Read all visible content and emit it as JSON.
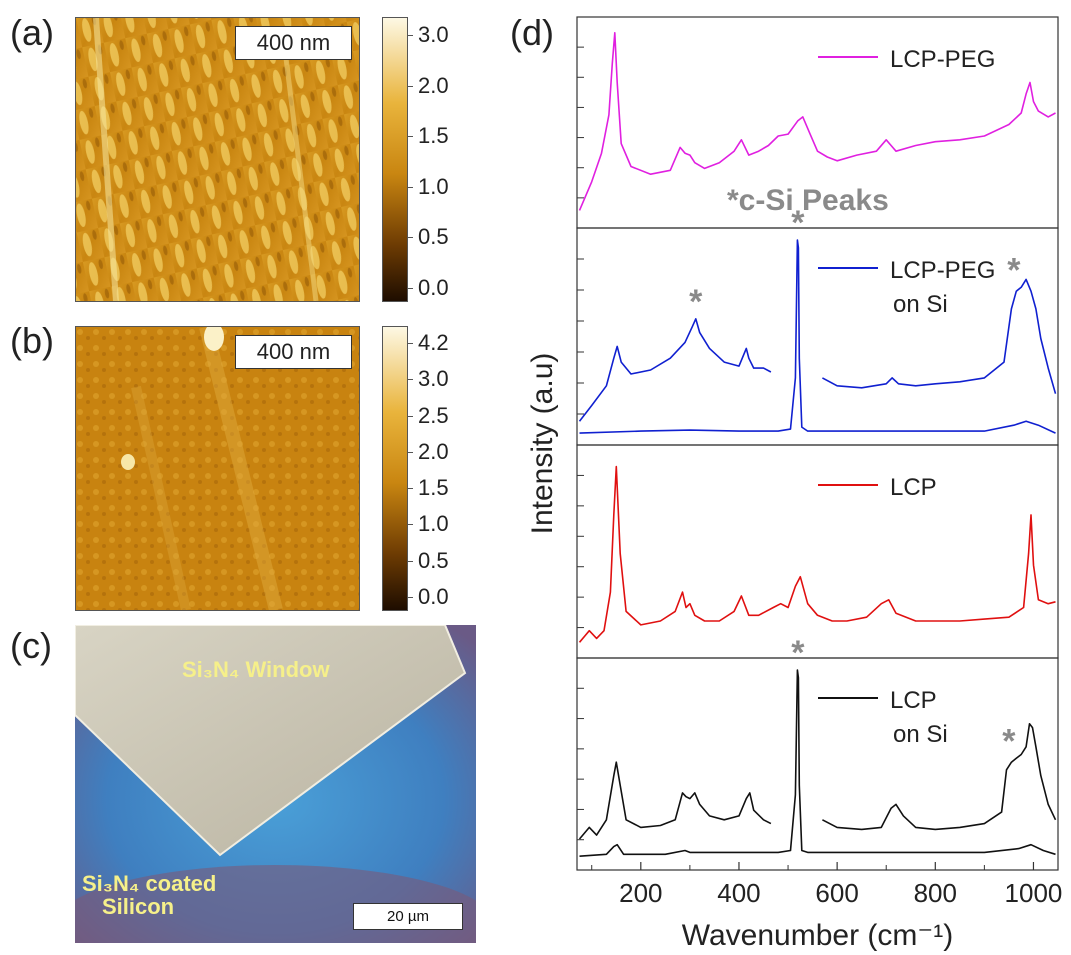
{
  "panels": {
    "a": {
      "label": "(a)",
      "scalebar": "400 nm",
      "colorbar_ticks": [
        "3.0",
        "2.0",
        "1.5",
        "1.0",
        "0.5",
        "0.0"
      ]
    },
    "b": {
      "label": "(b)",
      "scalebar": "400 nm",
      "colorbar_ticks": [
        "4.2",
        "3.0",
        "2.5",
        "2.0",
        "1.5",
        "1.0",
        "0.5",
        "0.0"
      ]
    },
    "c": {
      "label": "(c)",
      "window_text": "Si₃N₄ Window",
      "coated_line1": "Si₃N₄ coated",
      "coated_line2": "Silicon",
      "scalebar": "20 µm"
    },
    "d": {
      "label": "(d)"
    }
  },
  "colors": {
    "afm_dark": "#1e0d00",
    "afm_mid": "#c98611",
    "afm_light": "#f7e8a0",
    "lcp_peg": "#e020e0",
    "lcp_peg_si": "#1020d0",
    "lcp": "#e01010",
    "lcp_si": "#111111",
    "peak_marker": "#8a8a8a",
    "micro_text": "#f6f08a"
  },
  "chart_data": {
    "type": "line",
    "xlabel": "Wavenumber (cm⁻¹)",
    "ylabel": "Intensity (a.u)",
    "xlim": [
      70,
      1050
    ],
    "xticks": [
      200,
      400,
      600,
      800,
      1000
    ],
    "annotation": "*c-Si Peaks",
    "peak_marker": "*",
    "subplots": [
      {
        "legend": [
          "LCP-PEG"
        ],
        "color": "#e020e0",
        "series": [
          {
            "x": [
              75,
              100,
              120,
              135,
              142,
              147,
              152,
              160,
              180,
              220,
              260,
              280,
              290,
              300,
              310,
              330,
              360,
              390,
              405,
              420,
              440,
              460,
              480,
              500,
              520,
              530,
              545,
              560,
              580,
              600,
              640,
              680,
              700,
              720,
              760,
              800,
              850,
              900,
              950,
              975,
              985,
              993,
              1000,
              1010,
              1030,
              1045
            ],
            "y": [
              0.05,
              0.2,
              0.35,
              0.55,
              0.82,
              0.98,
              0.72,
              0.4,
              0.28,
              0.24,
              0.26,
              0.38,
              0.35,
              0.34,
              0.3,
              0.27,
              0.3,
              0.36,
              0.42,
              0.34,
              0.36,
              0.39,
              0.44,
              0.45,
              0.52,
              0.54,
              0.45,
              0.36,
              0.33,
              0.31,
              0.34,
              0.36,
              0.42,
              0.36,
              0.39,
              0.41,
              0.42,
              0.44,
              0.5,
              0.56,
              0.66,
              0.72,
              0.62,
              0.57,
              0.54,
              0.56
            ]
          }
        ]
      },
      {
        "legend": [
          "LCP-PEG",
          "on Si"
        ],
        "color": "#1020d0",
        "series": [
          {
            "x": [
              75,
              100,
              130,
              145,
              152,
              160,
              180,
              220,
              260,
              290,
              305,
              312,
              320,
              340,
              370,
              400,
              415,
              420,
              430,
              450,
              465
            ],
            "y": [
              0.08,
              0.16,
              0.26,
              0.4,
              0.46,
              0.38,
              0.32,
              0.34,
              0.4,
              0.48,
              0.56,
              0.6,
              0.53,
              0.45,
              0.38,
              0.36,
              0.45,
              0.4,
              0.35,
              0.35,
              0.33
            ]
          },
          {
            "x": [
              570,
              600,
              650,
              700,
              712,
              725,
              760,
              800,
              850,
              900,
              940,
              955,
              965,
              975,
              985,
              995,
              1005,
              1015,
              1030,
              1045
            ],
            "y": [
              0.3,
              0.26,
              0.25,
              0.27,
              0.3,
              0.27,
              0.26,
              0.27,
              0.28,
              0.3,
              0.38,
              0.65,
              0.74,
              0.76,
              0.8,
              0.74,
              0.65,
              0.5,
              0.35,
              0.22
            ]
          },
          {
            "x": [
              75,
              200,
              300,
              400,
              480,
              505,
              515,
              519,
              521,
              523,
              528,
              540,
              600,
              700,
              800,
              900,
              960,
              985,
              1010,
              1045
            ],
            "y": [
              0.02,
              0.03,
              0.035,
              0.03,
              0.03,
              0.04,
              0.3,
              1.0,
              0.96,
              0.4,
              0.05,
              0.03,
              0.03,
              0.03,
              0.03,
              0.03,
              0.06,
              0.08,
              0.06,
              0.02
            ]
          }
        ]
      },
      {
        "legend": [
          "LCP"
        ],
        "color": "#e01010",
        "series": [
          {
            "x": [
              75,
              95,
              110,
              125,
              138,
              145,
              150,
              158,
              170,
              200,
              240,
              270,
              285,
              292,
              300,
              310,
              330,
              360,
              390,
              405,
              420,
              440,
              470,
              485,
              500,
              515,
              525,
              540,
              560,
              590,
              620,
              660,
              690,
              705,
              720,
              760,
              800,
              850,
              900,
              950,
              980,
              990,
              995,
              1000,
              1010,
              1030,
              1045
            ],
            "y": [
              0.04,
              0.1,
              0.06,
              0.1,
              0.3,
              0.7,
              0.95,
              0.5,
              0.2,
              0.13,
              0.15,
              0.2,
              0.3,
              0.22,
              0.24,
              0.18,
              0.15,
              0.15,
              0.2,
              0.28,
              0.18,
              0.18,
              0.22,
              0.24,
              0.22,
              0.33,
              0.38,
              0.24,
              0.18,
              0.15,
              0.15,
              0.17,
              0.24,
              0.26,
              0.19,
              0.15,
              0.15,
              0.15,
              0.16,
              0.17,
              0.22,
              0.5,
              0.7,
              0.44,
              0.26,
              0.24,
              0.25
            ]
          }
        ]
      },
      {
        "legend": [
          "LCP",
          "on Si"
        ],
        "color": "#111111",
        "series": [
          {
            "x": [
              75,
              95,
              110,
              130,
              145,
              150,
              158,
              170,
              200,
              240,
              270,
              285,
              292,
              300,
              310,
              320,
              340,
              370,
              400,
              415,
              422,
              430,
              450,
              465
            ],
            "y": [
              0.12,
              0.18,
              0.14,
              0.22,
              0.45,
              0.52,
              0.4,
              0.22,
              0.18,
              0.19,
              0.22,
              0.36,
              0.34,
              0.33,
              0.36,
              0.3,
              0.24,
              0.22,
              0.24,
              0.33,
              0.36,
              0.27,
              0.22,
              0.2
            ]
          },
          {
            "x": [
              570,
              600,
              650,
              690,
              710,
              720,
              735,
              760,
              800,
              850,
              900,
              935,
              945,
              955,
              965,
              975,
              985,
              992,
              998,
              1005,
              1015,
              1030,
              1045
            ],
            "y": [
              0.22,
              0.18,
              0.17,
              0.18,
              0.28,
              0.3,
              0.24,
              0.18,
              0.17,
              0.18,
              0.2,
              0.26,
              0.48,
              0.52,
              0.54,
              0.56,
              0.6,
              0.72,
              0.7,
              0.6,
              0.45,
              0.3,
              0.22
            ]
          },
          {
            "x": [
              75,
              130,
              145,
              152,
              165,
              250,
              290,
              300,
              400,
              480,
              505,
              515,
              519,
              521,
              523,
              528,
              540,
              600,
              700,
              800,
              900,
              970,
              995,
              1020,
              1045
            ],
            "y": [
              0.03,
              0.04,
              0.08,
              0.09,
              0.04,
              0.04,
              0.06,
              0.05,
              0.05,
              0.05,
              0.06,
              0.35,
              1.0,
              0.96,
              0.4,
              0.06,
              0.05,
              0.05,
              0.05,
              0.05,
              0.05,
              0.07,
              0.09,
              0.06,
              0.04
            ]
          }
        ]
      }
    ],
    "peak_markers": [
      {
        "subplot": 1,
        "x": 520
      },
      {
        "subplot": 1,
        "x": 312
      },
      {
        "subplot": 1,
        "x": 960
      },
      {
        "subplot": 3,
        "x": 520
      },
      {
        "subplot": 3,
        "x": 950
      }
    ]
  }
}
